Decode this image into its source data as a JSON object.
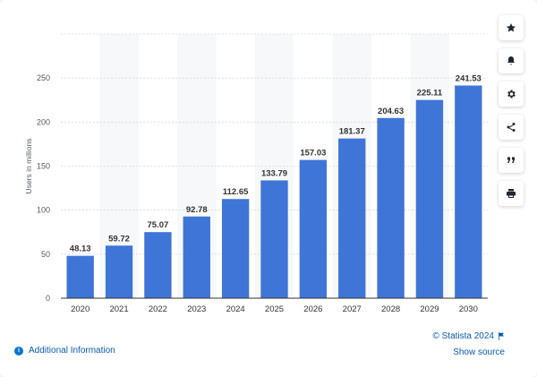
{
  "chart_data": {
    "type": "bar",
    "categories": [
      "2020",
      "2021",
      "2022",
      "2023",
      "2024",
      "2025",
      "2026",
      "2027",
      "2028",
      "2029",
      "2030"
    ],
    "values": [
      48.13,
      59.72,
      75.07,
      92.78,
      112.65,
      133.79,
      157.03,
      181.37,
      204.63,
      225.11,
      241.53
    ],
    "value_labels": [
      "48.13",
      "59.72",
      "75.07",
      "92.78",
      "112.65",
      "133.79",
      "157.03",
      "181.37",
      "204.63",
      "225.11",
      "241.53"
    ],
    "ylabel": "Users in millions",
    "ylim": [
      0,
      300
    ],
    "yticks": [
      "0",
      "50",
      "100",
      "150",
      "200",
      "250"
    ],
    "grid": true,
    "bar_color": "#3f75d6"
  },
  "footer": {
    "additional_info": "Additional Information",
    "copyright": "© Statista 2024",
    "show_source": "Show source"
  },
  "toolbar": {
    "icons": [
      "star-icon",
      "bell-icon",
      "gear-icon",
      "share-icon",
      "quote-icon",
      "print-icon"
    ]
  },
  "colors": {
    "link": "#0a5ab4",
    "accent": "#0a74d4"
  }
}
